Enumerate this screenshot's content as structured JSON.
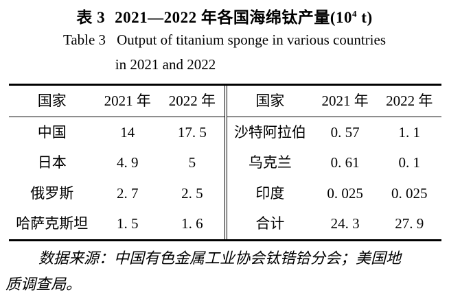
{
  "caption": {
    "cn_label": "表 3",
    "cn_main": "2021—2022 年各国海绵钛产量(10",
    "cn_sup": "4",
    "cn_tail": " t)",
    "en_label": "Table 3",
    "en_main": "Output of titanium sponge in various countries",
    "en_line2": "in 2021 and 2022"
  },
  "table": {
    "left": {
      "headers": [
        "国家",
        "2021 年",
        "2022 年"
      ],
      "rows": [
        [
          "中国",
          "14",
          "17. 5"
        ],
        [
          "日本",
          "4. 9",
          "5"
        ],
        [
          "俄罗斯",
          "2. 7",
          "2. 5"
        ],
        [
          "哈萨克斯坦",
          "1. 5",
          "1. 6"
        ]
      ]
    },
    "right": {
      "headers": [
        "国家",
        "2021 年",
        "2022 年"
      ],
      "rows": [
        [
          "沙特阿拉伯",
          "0. 57",
          "1. 1"
        ],
        [
          "乌克兰",
          "0. 61",
          "0. 1"
        ],
        [
          "印度",
          "0. 025",
          "0. 025"
        ],
        [
          "合计",
          "24. 3",
          "27. 9"
        ]
      ]
    }
  },
  "footnote": {
    "line1": "数据来源：中国有色金属工业协会钛锆铪分会；美国地",
    "line2": "质调查局。"
  },
  "chart_data": {
    "type": "table",
    "title": "表3 2021—2022年各国海绵钛产量(10⁴ t)",
    "title_en": "Table 3 Output of titanium sponge in various countries in 2021 and 2022",
    "unit": "10^4 t",
    "columns": [
      "国家",
      "2021年",
      "2022年"
    ],
    "rows": [
      {
        "country": "中国",
        "y2021": 14,
        "y2022": 17.5
      },
      {
        "country": "日本",
        "y2021": 4.9,
        "y2022": 5
      },
      {
        "country": "俄罗斯",
        "y2021": 2.7,
        "y2022": 2.5
      },
      {
        "country": "哈萨克斯坦",
        "y2021": 1.5,
        "y2022": 1.6
      },
      {
        "country": "沙特阿拉伯",
        "y2021": 0.57,
        "y2022": 1.1
      },
      {
        "country": "乌克兰",
        "y2021": 0.61,
        "y2022": 0.1
      },
      {
        "country": "印度",
        "y2021": 0.025,
        "y2022": 0.025
      },
      {
        "country": "合计",
        "y2021": 24.3,
        "y2022": 27.9
      }
    ],
    "source_note": "数据来源：中国有色金属工业协会钛锆铪分会；美国地质调查局。"
  }
}
